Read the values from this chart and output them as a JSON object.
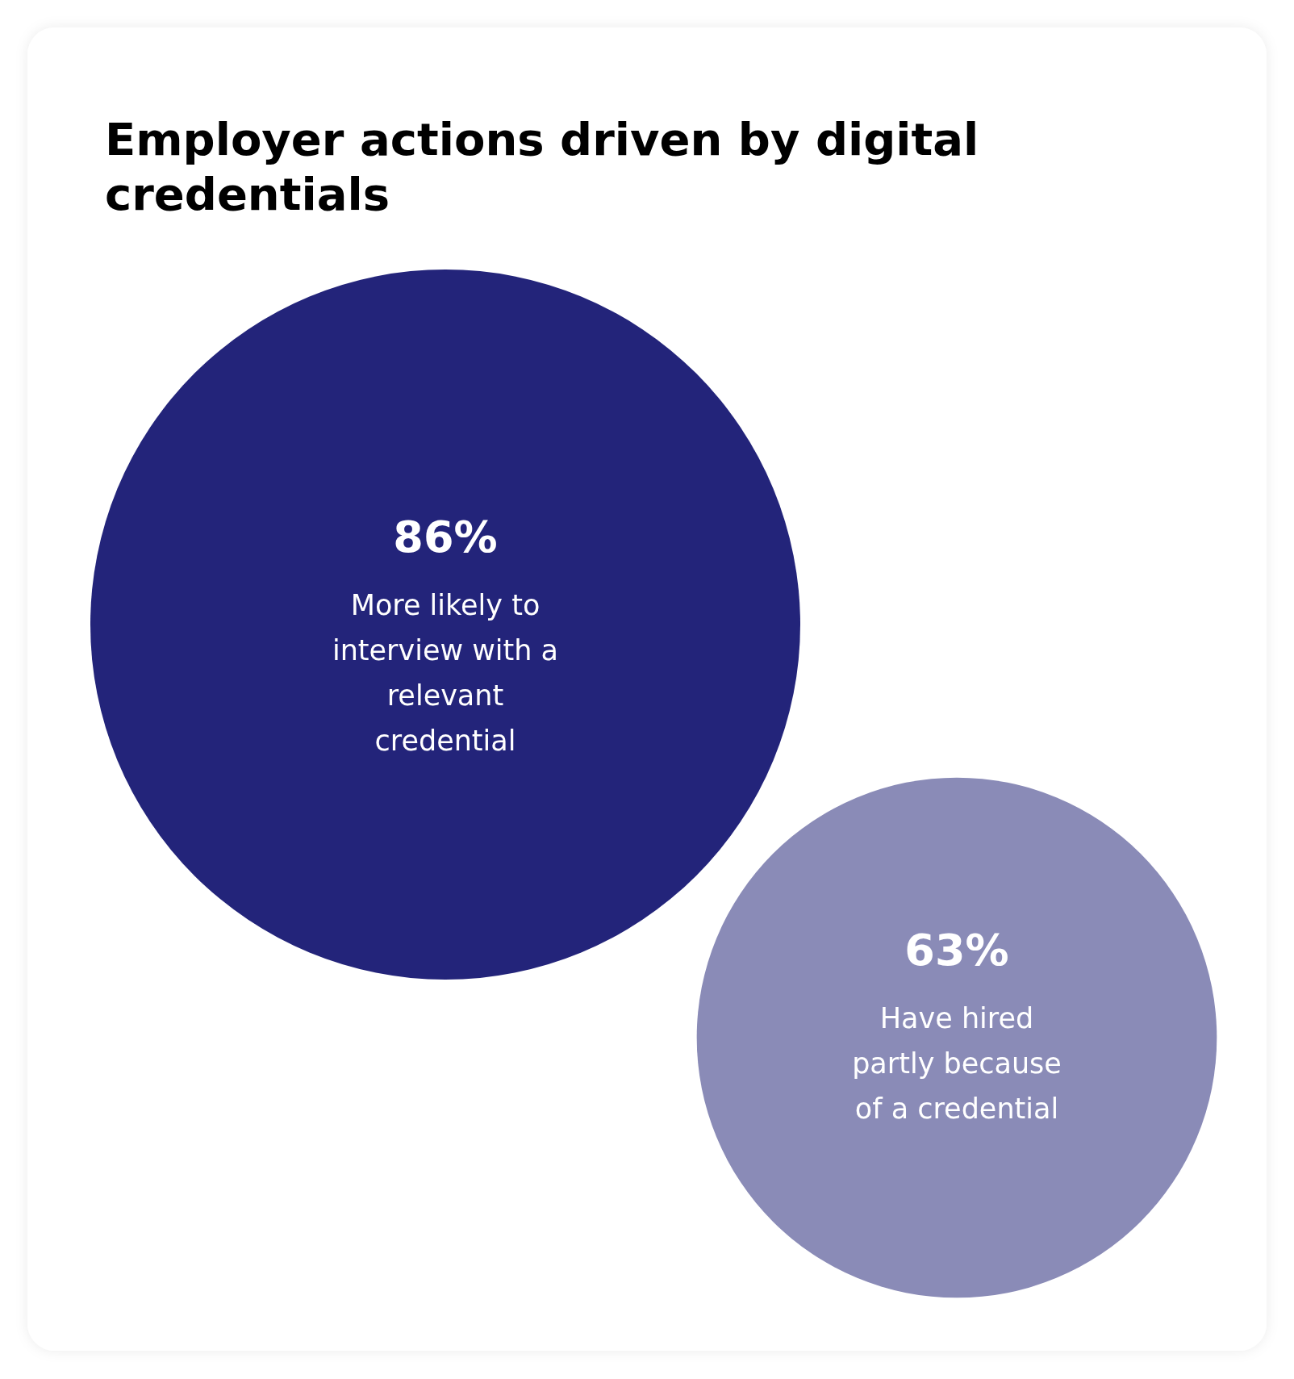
{
  "chart_data": {
    "type": "other",
    "title": "Employer actions driven by digital credentials",
    "categories": [
      "More likely to interview with a relevant credential",
      "Have hired partly because of a credential"
    ],
    "values": [
      86,
      63
    ],
    "value_labels": [
      "86%",
      "63%"
    ],
    "colors": [
      "#23247a",
      "#8a8bb7"
    ]
  }
}
